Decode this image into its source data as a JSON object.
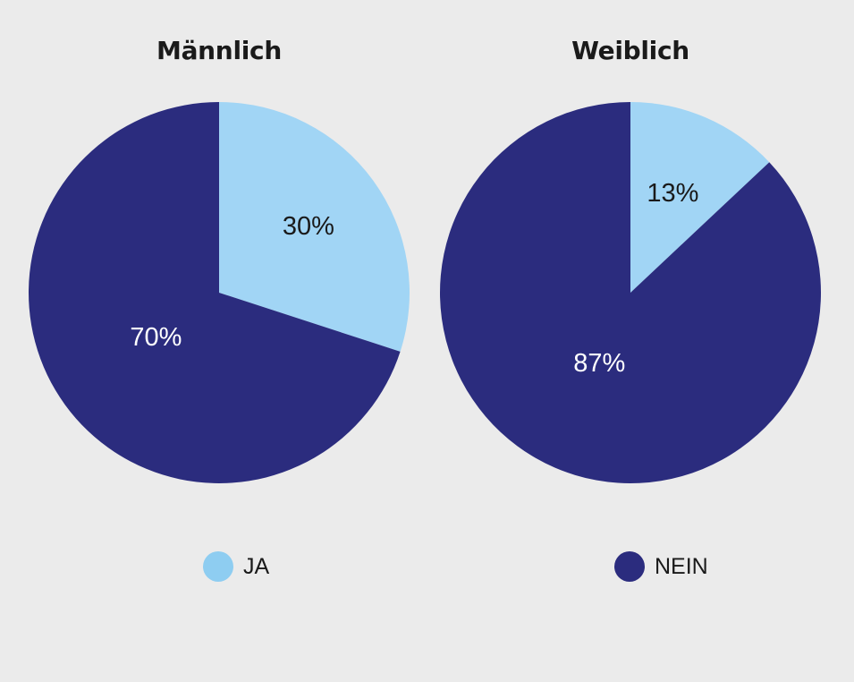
{
  "chart_data": [
    {
      "type": "pie",
      "title": "Männlich",
      "slices": [
        {
          "label": "JA",
          "value": 30,
          "value_label": "30%"
        },
        {
          "label": "NEIN",
          "value": 70,
          "value_label": "70%"
        }
      ]
    },
    {
      "type": "pie",
      "title": "Weiblich",
      "slices": [
        {
          "label": "JA",
          "value": 13,
          "value_label": "13%"
        },
        {
          "label": "NEIN",
          "value": 87,
          "value_label": "87%"
        }
      ]
    }
  ],
  "legend": {
    "placement": "bottom",
    "items": [
      {
        "label": "JA",
        "color": "#8ecdf1"
      },
      {
        "label": "NEIN",
        "color": "#2b2c7e"
      }
    ]
  },
  "colors": {
    "ja_slice": "#a1d5f5",
    "nein_slice": "#2b2c7e",
    "ja_label_text": "#1a1a1a",
    "nein_label_text": "#ffffff",
    "background": "#ebebeb"
  }
}
